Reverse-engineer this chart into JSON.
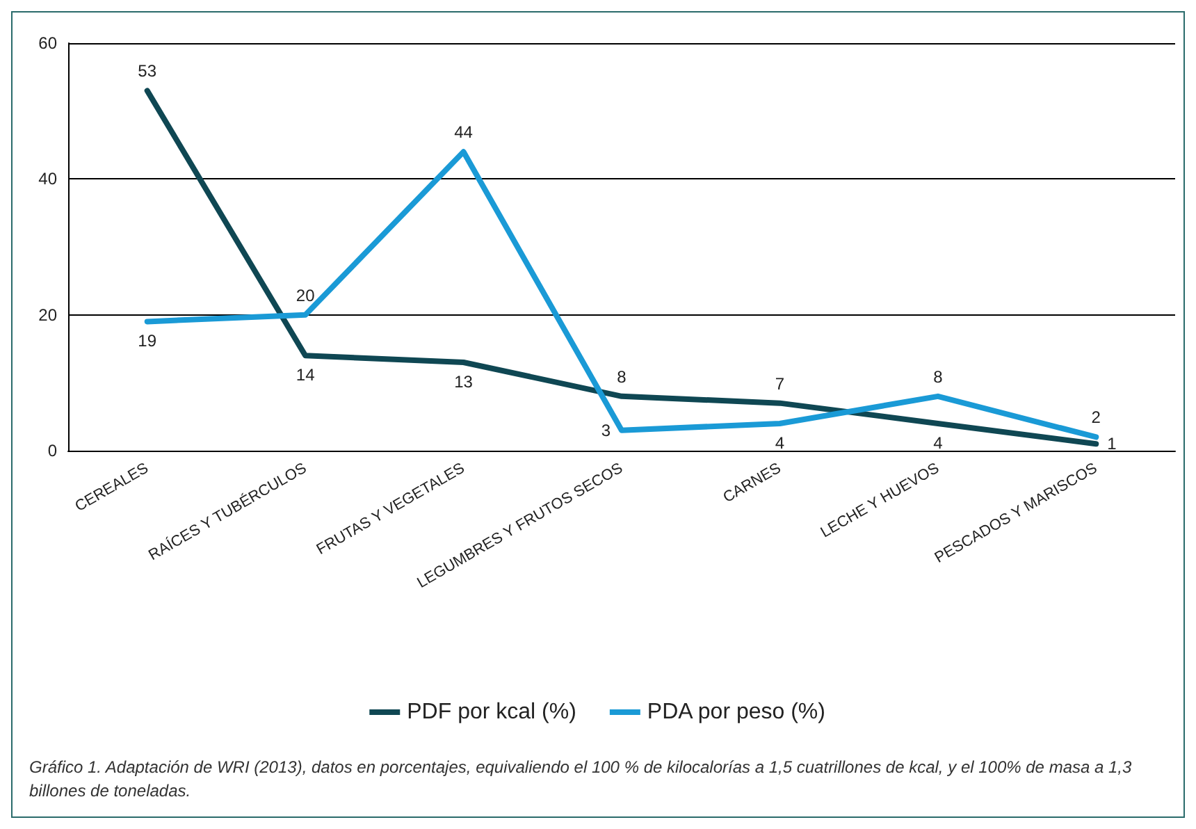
{
  "chart_data": {
    "type": "line",
    "categories": [
      "CEREALES",
      "RAÍCES Y TUBÉRCULOS",
      "FRUTAS Y VEGETALES",
      "LEGUMBRES Y FRUTOS SECOS",
      "CARNES",
      "LECHE Y HUEVOS",
      "PESCADOS Y MARISCOS"
    ],
    "series": [
      {
        "name": "PDF por kcal (%)",
        "color": "#0f4753",
        "values": [
          53,
          14,
          13,
          8,
          7,
          4,
          1
        ]
      },
      {
        "name": "PDA por peso (%)",
        "color": "#1a9ad6",
        "values": [
          19,
          20,
          44,
          3,
          4,
          8,
          2
        ]
      }
    ],
    "ylim": [
      0,
      60
    ],
    "yticks": [
      0,
      20,
      40,
      60
    ],
    "grid": "y",
    "legend": "bottom",
    "data_labels": true,
    "marker": "none",
    "line_style": "solid",
    "annotations": [
      "Gráfico 1. Adaptación de WRI (2013), datos en porcentajes, equivaliendo el 100 % de kilocalorías a 1,5 cuatrillones de kcal, y el 100% de masa a 1,3 billones de toneladas."
    ]
  }
}
